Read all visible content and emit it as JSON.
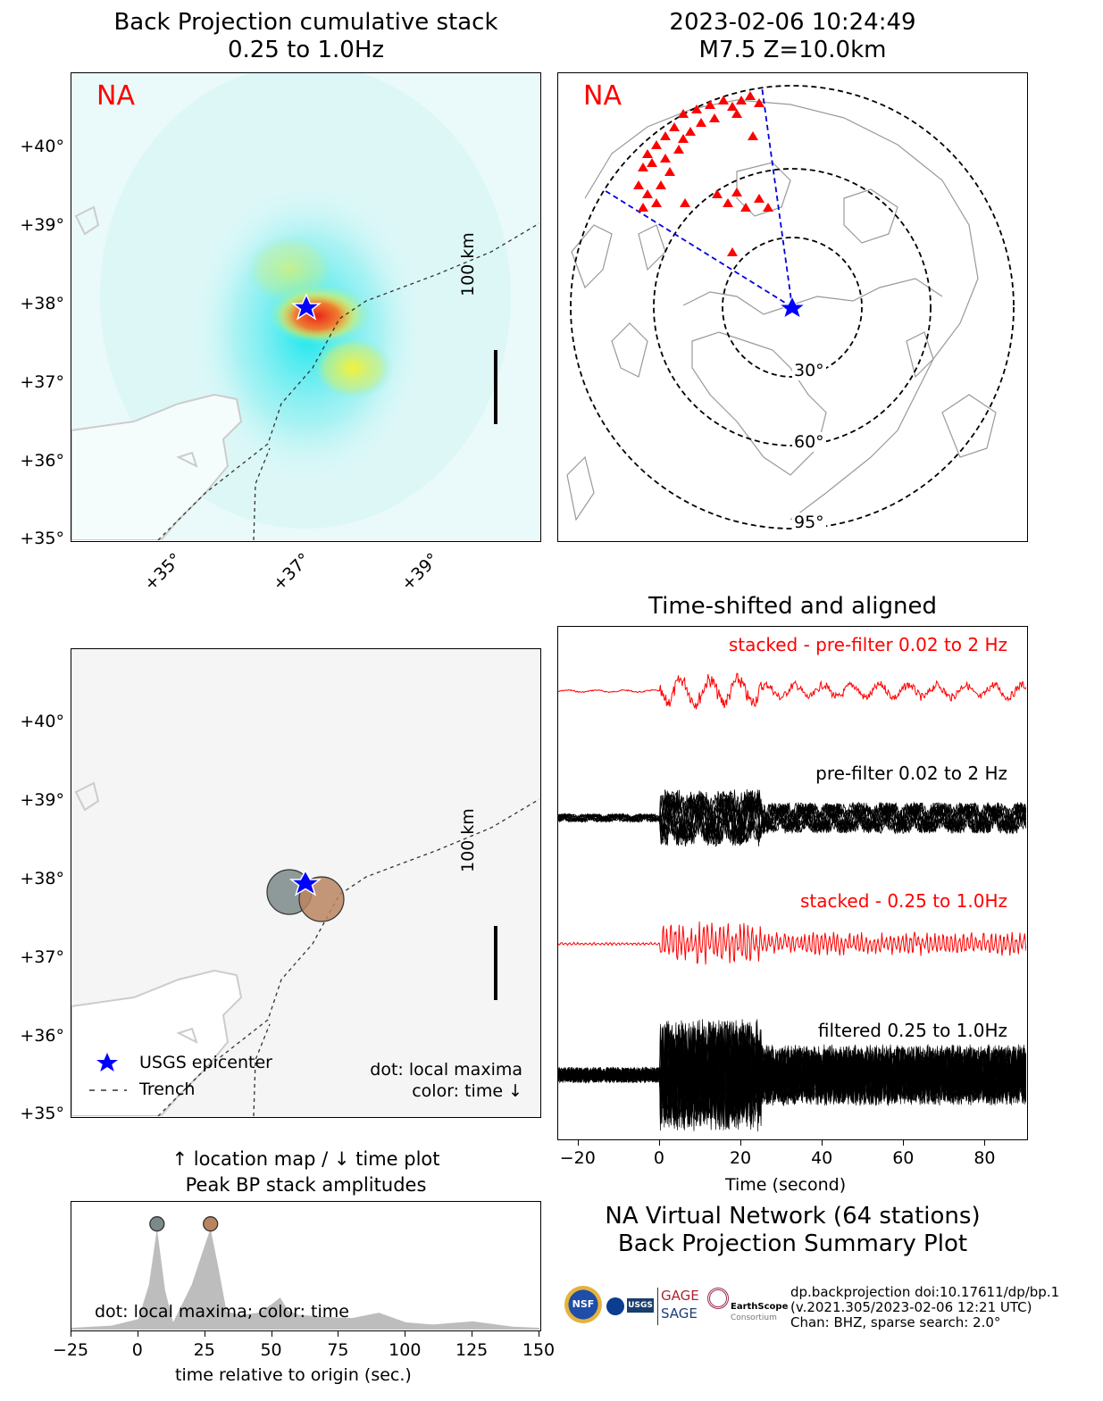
{
  "bp_panel": {
    "title_line1": "Back Projection cumulative stack",
    "title_line2": "0.25 to 1.0Hz",
    "network_label": "NA",
    "y_ticks": [
      "+40°",
      "+39°",
      "+38°",
      "+37°",
      "+36°",
      "+35°"
    ],
    "x_ticks": [
      "+35°",
      "+37°",
      "+39°"
    ],
    "scale_label": "100 km"
  },
  "station_map": {
    "title_line1": "2023-02-06 10:24:49",
    "title_line2": "M7.5 Z=10.0km",
    "network_label": "NA",
    "ring_labels": [
      "30°",
      "60°",
      "95°"
    ]
  },
  "location_map": {
    "y_ticks": [
      "+40°",
      "+39°",
      "+38°",
      "+37°",
      "+36°",
      "+35°"
    ],
    "scale_label": "100 km",
    "legend_epicenter": "USGS epicenter",
    "legend_trench": "Trench",
    "note_line1": "dot: local maxima",
    "note_line2": "color: time ↓"
  },
  "traces_panel": {
    "title": "Time-shifted and aligned",
    "trace_labels": [
      "stacked - pre-filter 0.02 to 2 Hz",
      "pre-filter 0.02 to 2 Hz",
      "stacked - 0.25 to 1.0Hz",
      "filtered 0.25 to 1.0Hz"
    ],
    "x_ticks": [
      "−20",
      "0",
      "20",
      "40",
      "60",
      "80"
    ],
    "x_label": "Time (second)"
  },
  "amplitude_panel": {
    "title_line1": "↑ location map / ↓ time plot",
    "title_line2": "Peak BP stack amplitudes",
    "note": "dot: local maxima; color: time",
    "x_ticks": [
      "−25",
      "0",
      "25",
      "50",
      "75",
      "100",
      "125",
      "150"
    ],
    "x_label": "time relative to origin (sec.)"
  },
  "summary": {
    "line1": "NA Virtual Network (64 stations)",
    "line2": "Back Projection Summary Plot"
  },
  "credits": {
    "line1": "dp.backprojection doi:10.17611/dp/bp.1",
    "line2": "(v.2021.305/2023-02-06 12:21 UTC)",
    "line3": "Chan: BHZ, sparse search: 2.0°",
    "logo_gage": "GAGE",
    "logo_sage": "SAGE",
    "logo_earthscope": "EarthScope",
    "logo_consortium": "Consortium",
    "logo_nsf": "NSF",
    "logo_usgs": "USGS"
  },
  "colors": {
    "epicenter": "#0000ff",
    "stations": "#ff0000",
    "peak1": "#7a8a88",
    "peak2": "#b98560",
    "stacked_trace": "#ff0000"
  },
  "chart_data": [
    {
      "type": "heatmap",
      "title": "Back Projection cumulative stack 0.25 to 1.0Hz",
      "ylim": [
        34.9,
        40.9
      ],
      "y_ticks": [
        40,
        39,
        38,
        37,
        36,
        35
      ],
      "x_ticks": [
        35,
        37,
        39
      ],
      "epicenter": {
        "lon": 37.0,
        "lat": 37.9
      },
      "hotspots": [
        {
          "lon": 37.2,
          "lat": 37.85,
          "intensity": 1.0
        },
        {
          "lon": 37.6,
          "lat": 37.2,
          "intensity": 0.7
        },
        {
          "lon": 36.8,
          "lat": 38.5,
          "intensity": 0.5
        }
      ]
    },
    {
      "type": "scatter",
      "title": "2023-02-06 10:24:49 M7.5 Z=10.0km",
      "distance_rings_deg": [
        30,
        60,
        95
      ],
      "station_count": 64
    },
    {
      "type": "scatter",
      "title": "Local maxima location map",
      "y_ticks": [
        40,
        39,
        38,
        37,
        36,
        35
      ],
      "maxima": [
        {
          "lon": 36.8,
          "lat": 37.85,
          "color": "#7a8a88"
        },
        {
          "lon": 37.3,
          "lat": 37.7,
          "color": "#b98560"
        }
      ]
    },
    {
      "type": "line",
      "title": "Time-shifted and aligned",
      "xlabel": "Time (second)",
      "xlim": [
        -25,
        90
      ],
      "x_ticks": [
        -20,
        0,
        20,
        40,
        60,
        80
      ],
      "series": [
        {
          "name": "stacked - pre-filter 0.02 to 2 Hz"
        },
        {
          "name": "pre-filter 0.02 to 2 Hz"
        },
        {
          "name": "stacked - 0.25 to 1.0Hz"
        },
        {
          "name": "filtered 0.25 to 1.0Hz"
        }
      ]
    },
    {
      "type": "area",
      "title": "Peak BP stack amplitudes",
      "xlabel": "time relative to origin (sec.)",
      "xlim": [
        -25,
        150
      ],
      "x_ticks": [
        -25,
        0,
        25,
        50,
        75,
        100,
        125,
        150
      ],
      "x": [
        -25,
        -10,
        0,
        4,
        7,
        10,
        13,
        17,
        20,
        24,
        27,
        30,
        33,
        38,
        45,
        50,
        53,
        56,
        60,
        70,
        80,
        90,
        100,
        110,
        125,
        140,
        150
      ],
      "y": [
        0,
        0.02,
        0.08,
        0.4,
        0.92,
        0.35,
        0.05,
        0.25,
        0.4,
        0.7,
        0.92,
        0.55,
        0.15,
        0.12,
        0.14,
        0.22,
        0.28,
        0.16,
        0.12,
        0.1,
        0.09,
        0.14,
        0.05,
        0.03,
        0.06,
        0.01,
        0
      ],
      "peaks": [
        {
          "x": 7,
          "color": "#7a8a88"
        },
        {
          "x": 27,
          "color": "#b98560"
        }
      ]
    }
  ]
}
